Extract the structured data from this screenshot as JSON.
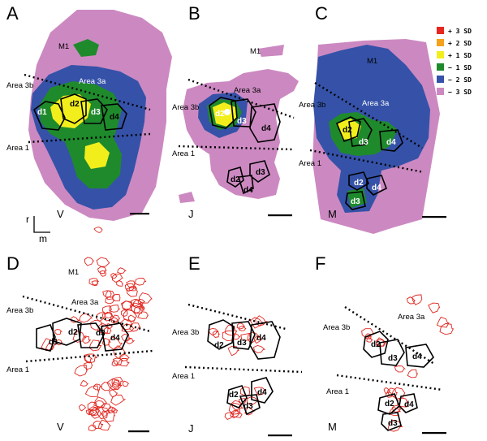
{
  "panels": {
    "A": {
      "letter": "A",
      "monkey": "V",
      "m1": "M1",
      "area3a": "Area 3a",
      "area3b": "Area 3b",
      "area1": "Area 1",
      "digits": [
        "d1",
        "d2",
        "d3",
        "d4"
      ]
    },
    "B": {
      "letter": "B",
      "monkey": "J",
      "m1": "M1",
      "area3a": "Area 3a",
      "area3b": "Area 3b",
      "area1": "Area 1",
      "digits": [
        "d2",
        "d3",
        "d4",
        "d2",
        "d3",
        "d4"
      ]
    },
    "C": {
      "letter": "C",
      "monkey": "M",
      "m1": "M1",
      "area3a": "Area 3a",
      "area3b": "Area 3b",
      "area1": "Area 1",
      "digits": [
        "d2",
        "d3",
        "d4",
        "d2",
        "d4",
        "d3"
      ]
    },
    "D": {
      "letter": "D",
      "monkey": "V",
      "m1": "M1",
      "area3a": "Area 3a",
      "area3b": "Area 3b",
      "area1": "Area 1",
      "digits": [
        "d1",
        "d2",
        "d3",
        "d4"
      ]
    },
    "E": {
      "letter": "E",
      "monkey": "J",
      "area3b": "Area 3b",
      "area1": "Area 1",
      "digits": [
        "d2",
        "d3",
        "d4",
        "d2",
        "d4",
        "d3"
      ]
    },
    "F": {
      "letter": "F",
      "monkey": "M",
      "area3a": "Area 3a",
      "area3b": "Area 3b",
      "area1": "Area 1",
      "digits": [
        "d2",
        "d3",
        "d4",
        "d2",
        "d4",
        "d3"
      ]
    }
  },
  "orientation": {
    "rostral": "r",
    "medial": "m"
  },
  "legend": [
    {
      "label": "+ 3 SD",
      "color": "#e8251f"
    },
    {
      "label": "+ 2 SD",
      "color": "#f5a21b"
    },
    {
      "label": "+ 1 SD",
      "color": "#f2ee1c"
    },
    {
      "label": "− 1 SD",
      "color": "#1f8a2c"
    },
    {
      "label": "− 2 SD",
      "color": "#3552a8"
    },
    {
      "label": "− 3 SD",
      "color": "#cc89c1"
    }
  ],
  "colors": {
    "pink": "#cc89c1",
    "blue": "#3552a8",
    "green": "#1f8a2c",
    "yellow": "#f2ee1c",
    "rf": "#e0261f"
  }
}
